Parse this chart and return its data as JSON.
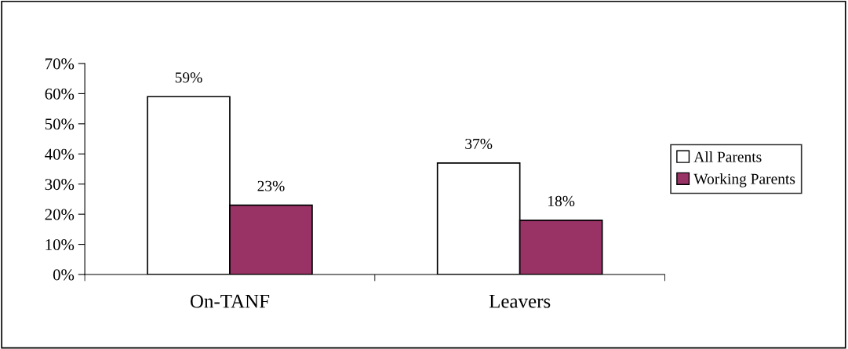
{
  "chart_data": {
    "type": "bar",
    "categories": [
      "On-TANF",
      "Leavers"
    ],
    "series": [
      {
        "name": "All Parents",
        "color": "#ffffff",
        "values": [
          59,
          37
        ]
      },
      {
        "name": "Working Parents",
        "color": "#993366",
        "values": [
          23,
          18
        ]
      }
    ],
    "ylim": [
      0,
      70
    ],
    "yticks": [
      {
        "value": 0,
        "label": "0%"
      },
      {
        "value": 10,
        "label": "10%"
      },
      {
        "value": 20,
        "label": "20%"
      },
      {
        "value": 30,
        "label": "30%"
      },
      {
        "value": 40,
        "label": "40%"
      },
      {
        "value": 50,
        "label": "50%"
      },
      {
        "value": 60,
        "label": "60%"
      },
      {
        "value": 70,
        "label": "70%"
      }
    ],
    "value_labels": [
      [
        "59%",
        "37%"
      ],
      [
        "23%",
        "18%"
      ]
    ],
    "legend": "right",
    "grid": false
  }
}
